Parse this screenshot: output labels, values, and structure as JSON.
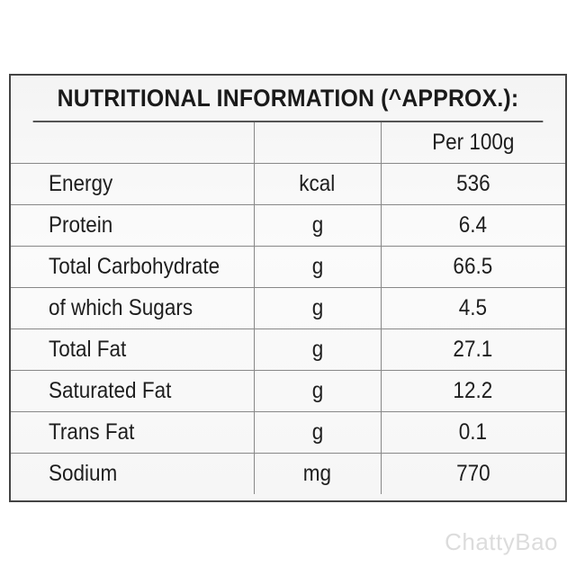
{
  "title": "NUTRITIONAL INFORMATION (^APPROX.):",
  "header": {
    "name": "",
    "unit": "",
    "value": "Per 100g"
  },
  "rows": [
    {
      "name": "Energy",
      "unit": "kcal",
      "value": "536"
    },
    {
      "name": "Protein",
      "unit": "g",
      "value": "6.4"
    },
    {
      "name": "Total Carbohydrate",
      "unit": "g",
      "value": "66.5"
    },
    {
      "name": "of which Sugars",
      "unit": "g",
      "value": "4.5"
    },
    {
      "name": "Total Fat",
      "unit": "g",
      "value": "27.1"
    },
    {
      "name": "Saturated Fat",
      "unit": "g",
      "value": "12.2"
    },
    {
      "name": "Trans Fat",
      "unit": "g",
      "value": "0.1"
    },
    {
      "name": "Sodium",
      "unit": "mg",
      "value": "770"
    }
  ],
  "watermark": "ChattyBao"
}
